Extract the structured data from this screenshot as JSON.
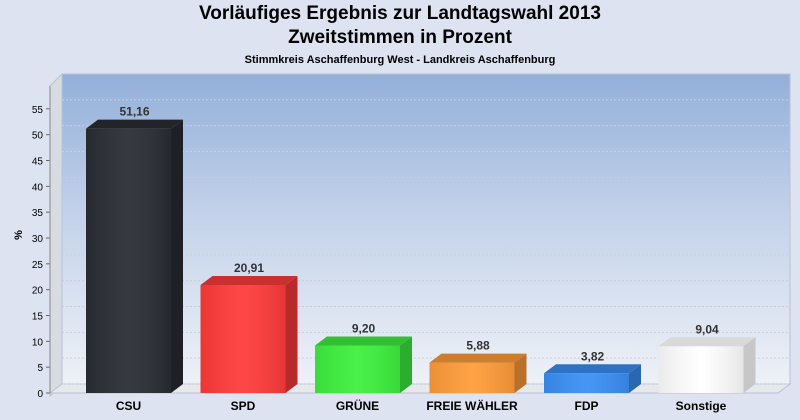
{
  "chart_data": {
    "type": "bar",
    "title": "Vorläufiges Ergebnis zur Landtagswahl 2013",
    "subtitle": "Zweitstimmen in Prozent",
    "caption": "Stimmkreis Aschaffenburg West - Landkreis Aschaffenburg",
    "ylabel": "%",
    "xlabel": "",
    "ylim": [
      0,
      60
    ],
    "yticks": [
      0,
      5,
      10,
      15,
      20,
      25,
      30,
      35,
      40,
      45,
      50,
      55
    ],
    "grid": true,
    "categories": [
      "CSU",
      "SPD",
      "GRÜNE",
      "FREIE WÄHLER",
      "FDP",
      "Sonstige"
    ],
    "values": [
      51.16,
      20.91,
      9.2,
      5.88,
      3.82,
      9.04
    ],
    "value_labels": [
      "51,16",
      "20,91",
      "9,20",
      "5,88",
      "3,82",
      "9,04"
    ],
    "colors": [
      "#2a2d35",
      "#ff3b3b",
      "#3ef03e",
      "#ff9c3a",
      "#3b8ff5",
      "#ffffff"
    ]
  }
}
